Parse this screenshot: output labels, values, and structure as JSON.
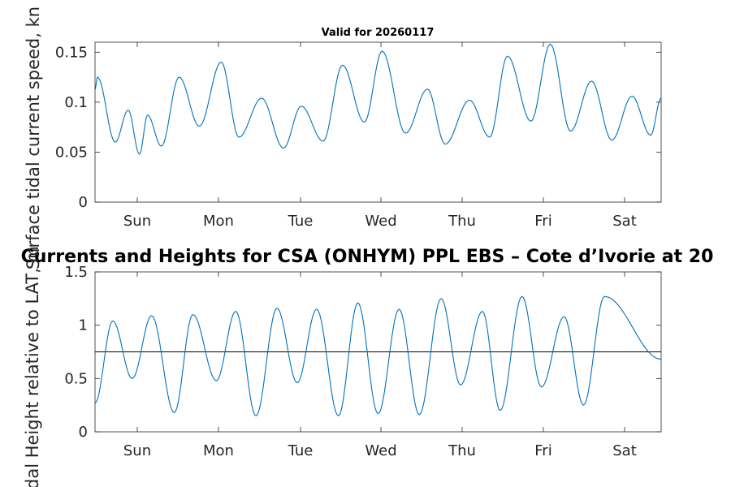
{
  "chart_data": [
    {
      "type": "line",
      "title": "Valid for 20260117",
      "ylabel": "Surface tidal current speed, kn",
      "xlabel": "",
      "x_tick_labels": [
        "Sun",
        "Mon",
        "Tue",
        "Wed",
        "Thu",
        "Fri",
        "Sat"
      ],
      "x_range_days": [
        0,
        7
      ],
      "ylim": [
        0,
        0.16
      ],
      "y_ticks": [
        0,
        0.05,
        0.1,
        0.15
      ],
      "y_tick_labels": [
        "0",
        "0.05",
        "0.1",
        "0.15"
      ],
      "series": [
        {
          "name": "current speed",
          "color": "#0072bd",
          "x": [
            0.03,
            0.25,
            0.41,
            0.55,
            0.65,
            0.82,
            1.04,
            1.29,
            1.56,
            1.78,
            2.06,
            2.33,
            2.55,
            2.82,
            3.06,
            3.33,
            3.55,
            3.84,
            4.11,
            4.33,
            4.63,
            4.88,
            5.1,
            5.39,
            5.63,
            5.88,
            6.14,
            6.39,
            6.64,
            6.87
          ],
          "values": [
            0.125,
            0.06,
            0.092,
            0.048,
            0.087,
            0.056,
            0.125,
            0.076,
            0.14,
            0.065,
            0.104,
            0.054,
            0.096,
            0.061,
            0.137,
            0.08,
            0.151,
            0.069,
            0.113,
            0.058,
            0.102,
            0.065,
            0.146,
            0.081,
            0.158,
            0.071,
            0.121,
            0.062,
            0.106,
            0.067
          ]
        }
      ]
    },
    {
      "type": "line",
      "title": "Currents and Heights for CSA (ONHYM) PPL EBS  – Cote d’Ivorie at 20",
      "ylabel": "Tidal Height relative to LAT, m",
      "xlabel": "",
      "x_tick_labels": [
        "Sun",
        "Mon",
        "Tue",
        "Wed",
        "Thu",
        "Fri",
        "Sat"
      ],
      "x_range_days": [
        0,
        7
      ],
      "ylim": [
        0,
        1.5
      ],
      "y_ticks": [
        0,
        0.5,
        1,
        1.5
      ],
      "y_tick_labels": [
        "0",
        "0.5",
        "1",
        "1.5"
      ],
      "reference_line": {
        "value": 0.75,
        "color": "#000000"
      },
      "series": [
        {
          "name": "tidal height",
          "color": "#0072bd",
          "x": [
            0.22,
            0.46,
            0.7,
            0.98,
            1.21,
            1.5,
            1.74,
            1.99,
            2.25,
            2.5,
            2.74,
            3.01,
            3.25,
            3.5,
            3.76,
            4.01,
            4.28,
            4.52,
            4.79,
            5.01,
            5.28,
            5.52,
            5.8,
            6.04,
            6.3
          ],
          "values": [
            1.04,
            0.5,
            1.09,
            0.18,
            1.1,
            0.48,
            1.13,
            0.15,
            1.16,
            0.46,
            1.15,
            0.15,
            1.21,
            0.17,
            1.15,
            0.16,
            1.25,
            0.44,
            1.13,
            0.2,
            1.27,
            0.42,
            1.08,
            0.25,
            1.27
          ]
        }
      ]
    }
  ]
}
